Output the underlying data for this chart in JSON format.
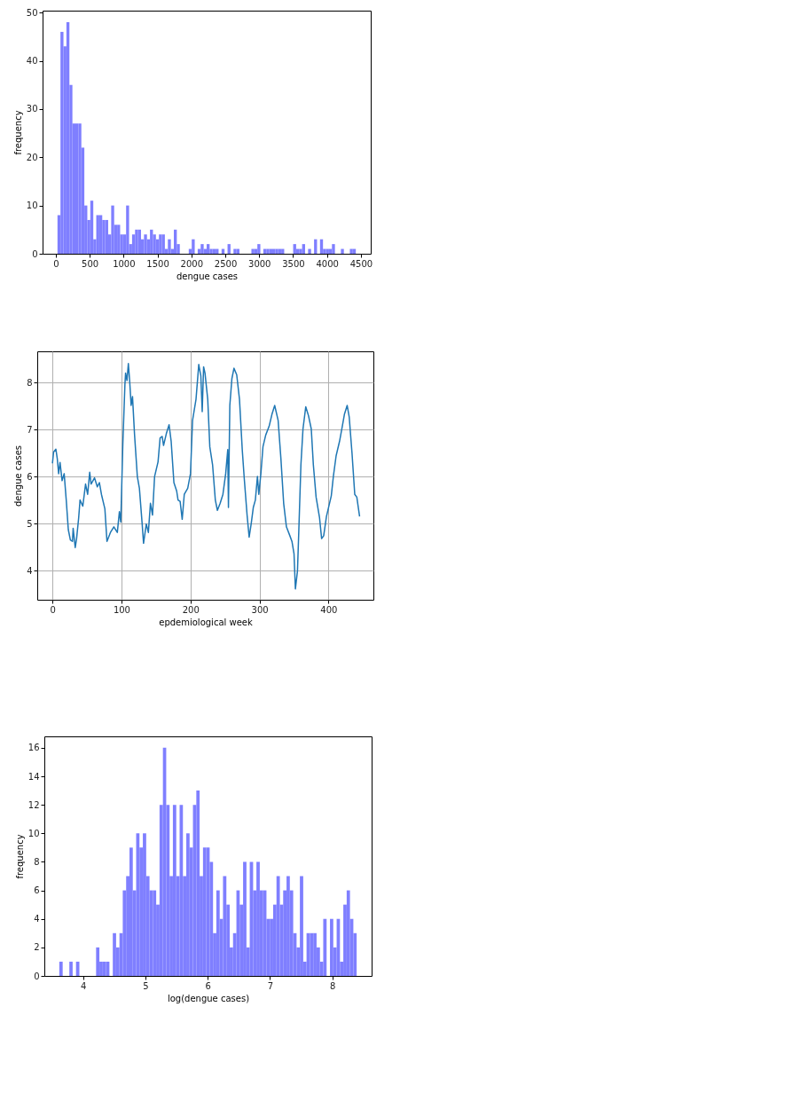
{
  "chart_data": [
    {
      "type": "histogram",
      "xlabel": "dengue cases",
      "ylabel": "frequency",
      "color": "#7f7fff",
      "grid": false,
      "xlim": [
        -195,
        4645
      ],
      "ylim": [
        0,
        50.4
      ],
      "xticks": [
        0,
        500,
        1000,
        1500,
        2000,
        2500,
        3000,
        3500,
        4000,
        4500
      ],
      "yticks": [
        0,
        10,
        20,
        30,
        40,
        50
      ],
      "bins": [
        25,
        69,
        113,
        157,
        201,
        245,
        289,
        333,
        377,
        421,
        465,
        509,
        553,
        597,
        641,
        685,
        729,
        773,
        817,
        861,
        905,
        949,
        993,
        1037,
        1081,
        1125,
        1169,
        1213,
        1257,
        1301,
        1345,
        1389,
        1433,
        1477,
        1521,
        1565,
        1609,
        1653,
        1697,
        1741,
        1785,
        1829,
        1873,
        1917,
        1961,
        2005,
        2049,
        2093,
        2137,
        2181,
        2225,
        2269,
        2313,
        2357,
        2401,
        2445,
        2489,
        2533,
        2577,
        2621,
        2665,
        2709,
        2753,
        2797,
        2841,
        2885,
        2929,
        2973,
        3017,
        3061,
        3105,
        3149,
        3193,
        3237,
        3281,
        3325,
        3369,
        3413,
        3457,
        3501,
        3545,
        3589,
        3633,
        3677,
        3721,
        3765,
        3809,
        3853,
        3897,
        3941,
        3985,
        4029,
        4073,
        4117,
        4161,
        4205,
        4249,
        4293,
        4337,
        4381,
        4425
      ],
      "values": [
        8,
        46,
        43,
        48,
        35,
        27,
        27,
        27,
        22,
        10,
        7,
        11,
        3,
        8,
        8,
        7,
        7,
        4,
        10,
        6,
        6,
        4,
        4,
        10,
        2,
        4,
        5,
        5,
        3,
        4,
        3,
        5,
        4,
        3,
        4,
        4,
        1,
        3,
        1,
        5,
        2,
        0,
        0,
        0,
        1,
        3,
        0,
        1,
        2,
        1,
        2,
        1,
        1,
        1,
        0,
        1,
        0,
        2,
        0,
        1,
        1,
        0,
        0,
        0,
        0,
        1,
        1,
        2,
        0,
        1,
        1,
        1,
        1,
        1,
        1,
        1,
        0,
        0,
        0,
        2,
        1,
        1,
        2,
        0,
        1,
        0,
        3,
        0,
        3,
        1,
        1,
        1,
        2,
        0,
        0,
        1,
        0,
        0,
        1,
        1
      ]
    },
    {
      "type": "line",
      "xlabel": "epdemiological week",
      "ylabel": "dengue cases",
      "color": "#1f77b4",
      "grid": true,
      "xlim": [
        -22,
        465
      ],
      "ylim": [
        3.38,
        8.66
      ],
      "xticks": [
        0,
        100,
        200,
        300,
        400
      ],
      "yticks": [
        4,
        5,
        6,
        7,
        8
      ],
      "x": [
        0,
        1.7,
        5,
        7,
        9,
        11,
        14,
        17,
        20,
        23,
        26,
        29,
        30,
        33,
        35,
        38,
        40,
        44,
        48,
        51,
        54,
        56,
        61,
        65,
        68,
        71,
        76,
        79,
        84,
        89,
        94,
        97,
        99,
        102,
        105,
        106,
        108,
        110,
        112,
        114,
        116,
        119,
        123,
        126,
        130,
        132,
        136,
        139,
        142,
        145,
        148,
        153,
        156,
        159,
        161,
        165,
        169,
        172,
        176,
        180,
        182,
        185,
        188,
        191,
        196,
        200,
        203,
        208,
        212,
        215,
        217,
        219,
        221,
        225,
        228,
        232,
        236,
        239,
        243,
        247,
        251,
        254,
        255,
        257,
        260,
        263,
        267,
        271,
        275,
        278,
        282,
        285,
        288,
        291,
        294,
        297,
        299,
        302,
        305,
        309,
        314,
        318,
        322,
        327,
        331,
        335,
        339,
        344,
        347,
        350,
        352,
        355,
        357,
        360,
        363,
        367,
        371,
        375,
        378,
        382,
        387,
        390,
        393,
        397,
        400,
        404,
        407,
        411,
        416,
        420,
        423,
        427,
        430,
        434,
        438,
        441,
        445
      ],
      "values": [
        6.28,
        6.52,
        6.58,
        6.38,
        6.06,
        6.3,
        5.91,
        6.06,
        5.5,
        4.87,
        4.65,
        4.62,
        4.9,
        4.49,
        4.68,
        5.12,
        5.5,
        5.37,
        5.84,
        5.62,
        6.09,
        5.84,
        5.97,
        5.78,
        5.87,
        5.62,
        5.31,
        4.62,
        4.81,
        4.93,
        4.81,
        5.25,
        5.03,
        6.69,
        7.95,
        8.2,
        8.04,
        8.4,
        8.01,
        7.51,
        7.7,
        6.88,
        6.0,
        5.75,
        4.99,
        4.58,
        4.99,
        4.81,
        5.43,
        5.18,
        6.0,
        6.31,
        6.82,
        6.85,
        6.66,
        6.91,
        7.1,
        6.75,
        5.87,
        5.69,
        5.5,
        5.47,
        5.09,
        5.62,
        5.75,
        6.06,
        7.19,
        7.64,
        8.38,
        8.14,
        7.38,
        8.33,
        8.2,
        7.64,
        6.63,
        6.25,
        5.5,
        5.28,
        5.43,
        5.62,
        6.06,
        6.57,
        5.34,
        7.51,
        8.08,
        8.3,
        8.16,
        7.64,
        6.57,
        5.94,
        5.18,
        4.71,
        5.0,
        5.34,
        5.5,
        6.0,
        5.62,
        6.06,
        6.63,
        6.88,
        7.07,
        7.32,
        7.51,
        7.19,
        6.38,
        5.43,
        4.93,
        4.74,
        4.62,
        4.36,
        3.61,
        3.99,
        4.87,
        6.25,
        7.01,
        7.48,
        7.29,
        7.01,
        6.25,
        5.56,
        5.12,
        4.68,
        4.74,
        5.15,
        5.34,
        5.59,
        6.0,
        6.44,
        6.75,
        7.07,
        7.32,
        7.51,
        7.26,
        6.5,
        5.62,
        5.56,
        5.15
      ]
    },
    {
      "type": "histogram",
      "xlabel": "log(dengue cases)",
      "ylabel": "frequency",
      "color": "#7f7fff",
      "grid": false,
      "xlim": [
        3.38,
        8.63
      ],
      "ylim": [
        0,
        16.8
      ],
      "xticks": [
        4,
        5,
        6,
        7,
        8
      ],
      "yticks": [
        0,
        2,
        4,
        6,
        8,
        10,
        12,
        14,
        16
      ],
      "bins": [
        3.62,
        3.674,
        3.727,
        3.781,
        3.834,
        3.888,
        3.942,
        3.995,
        4.049,
        4.102,
        4.156,
        4.21,
        4.263,
        4.317,
        4.37,
        4.424,
        4.478,
        4.531,
        4.585,
        4.638,
        4.692,
        4.746,
        4.799,
        4.853,
        4.906,
        4.96,
        5.014,
        5.067,
        5.121,
        5.174,
        5.228,
        5.282,
        5.335,
        5.389,
        5.442,
        5.496,
        5.55,
        5.603,
        5.657,
        5.71,
        5.764,
        5.818,
        5.871,
        5.925,
        5.978,
        6.032,
        6.086,
        6.139,
        6.193,
        6.246,
        6.3,
        6.354,
        6.407,
        6.461,
        6.514,
        6.568,
        6.622,
        6.675,
        6.729,
        6.782,
        6.836,
        6.89,
        6.943,
        6.997,
        7.05,
        7.104,
        7.158,
        7.211,
        7.265,
        7.318,
        7.372,
        7.426,
        7.479,
        7.533,
        7.586,
        7.64,
        7.694,
        7.747,
        7.801,
        7.854,
        7.908,
        7.962,
        8.015,
        8.069,
        8.122,
        8.176,
        8.23,
        8.283,
        8.337,
        8.39
      ],
      "values": [
        1,
        0,
        0,
        1,
        0,
        1,
        0,
        0,
        0,
        0,
        0,
        2,
        1,
        1,
        1,
        0,
        3,
        2,
        3,
        6,
        7,
        9,
        6,
        10,
        9,
        10,
        7,
        6,
        6,
        5,
        12,
        16,
        12,
        7,
        12,
        7,
        12,
        7,
        10,
        9,
        12,
        13,
        7,
        9,
        9,
        8,
        3,
        6,
        4,
        7,
        5,
        2,
        3,
        6,
        5,
        8,
        2,
        8,
        6,
        8,
        6,
        6,
        4,
        4,
        5,
        7,
        5,
        6,
        7,
        6,
        3,
        2,
        7,
        1,
        3,
        3,
        3,
        2,
        1,
        4,
        0,
        4,
        2,
        4,
        1,
        5,
        6,
        4,
        3
      ]
    }
  ]
}
